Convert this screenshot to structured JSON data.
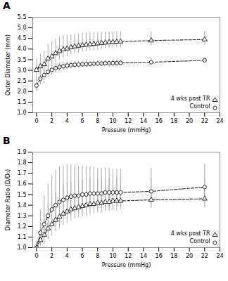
{
  "chart_data": [
    {
      "type": "line",
      "title": "A",
      "xlabel": "Pressure (mmHg)",
      "ylabel": "Outer Diameter (mm)",
      "xlim": [
        -0.5,
        24
      ],
      "xticks": [
        0,
        2,
        4,
        6,
        8,
        10,
        12,
        14,
        16,
        18,
        20,
        22,
        24
      ],
      "ylim": [
        1.0,
        5.5
      ],
      "yticks": [
        {
          "value": 1.0,
          "label": "1.0"
        },
        1.5,
        {
          "value": 2.0,
          "label": "2.0"
        },
        2.5,
        {
          "value": 3.0,
          "label": "3.0"
        },
        3.5,
        {
          "value": 4.0,
          "label": "4.0"
        },
        4.5,
        {
          "value": 5.0,
          "label": "5.0"
        },
        5.5
      ],
      "legend": "lower right",
      "x": [
        0,
        0.5,
        1,
        1.5,
        2,
        2.5,
        3,
        3.5,
        4,
        4.5,
        5,
        5.5,
        6,
        6.5,
        7,
        7.5,
        8,
        8.5,
        9,
        9.5,
        10,
        10.5,
        11,
        15,
        22
      ],
      "series": [
        {
          "name": "4 wks post TR",
          "color": "#2a2a2a",
          "marker": "triangle",
          "line_style": "dashed",
          "values": [
            3.02,
            3.18,
            3.28,
            3.55,
            3.65,
            3.8,
            3.9,
            3.98,
            4.02,
            4.08,
            4.12,
            4.15,
            4.18,
            4.2,
            4.22,
            4.24,
            4.26,
            4.28,
            4.3,
            4.32,
            4.33,
            4.34,
            4.35,
            4.4,
            4.45
          ],
          "yerr_upper": [
            0.5,
            0.58,
            0.62,
            0.68,
            0.7,
            0.7,
            0.68,
            0.65,
            0.62,
            0.6,
            0.58,
            0.57,
            0.56,
            0.55,
            0.54,
            0.53,
            0.52,
            0.51,
            0.5,
            0.49,
            0.48,
            0.47,
            0.46,
            0.42,
            0.38
          ],
          "yerr_lower": [
            0.5,
            0.38,
            0.38,
            0.4,
            0.42,
            0.42,
            0.42,
            0.4,
            0.38,
            0.36,
            0.35,
            0.34,
            0.33,
            0.32,
            0.31,
            0.3,
            0.3,
            0.29,
            0.28,
            0.28,
            0.27,
            0.27,
            0.26,
            0.25,
            0.25
          ]
        },
        {
          "name": "Control",
          "color": "#2a2a2a",
          "marker": "circle",
          "line_style": "dashed",
          "values": [
            2.28,
            2.6,
            2.78,
            2.93,
            3.02,
            3.1,
            3.15,
            3.19,
            3.22,
            3.24,
            3.26,
            3.27,
            3.28,
            3.29,
            3.3,
            3.31,
            3.32,
            3.32,
            3.33,
            3.33,
            3.34,
            3.34,
            3.35,
            3.38,
            3.47
          ],
          "yerr_upper": [
            0.28,
            0.3,
            0.28,
            0.27,
            0.26,
            0.24,
            0.22,
            0.21,
            0.2,
            0.19,
            0.18,
            0.18,
            0.17,
            0.17,
            0.16,
            0.16,
            0.16,
            0.15,
            0.15,
            0.15,
            0.15,
            0.14,
            0.14,
            0.13,
            0.13
          ],
          "yerr_lower": [
            0.28,
            0.28,
            0.26,
            0.25,
            0.24,
            0.22,
            0.21,
            0.2,
            0.19,
            0.18,
            0.17,
            0.17,
            0.16,
            0.16,
            0.15,
            0.15,
            0.15,
            0.14,
            0.14,
            0.14,
            0.14,
            0.13,
            0.13,
            0.12,
            0.12
          ]
        }
      ]
    },
    {
      "type": "line",
      "title": "B",
      "xlabel": "Pressure (mmHg)",
      "ylabel": "Diameter Ratio (D/D₀)",
      "xlim": [
        -0.5,
        24
      ],
      "xticks": [
        0,
        2,
        4,
        6,
        8,
        10,
        12,
        14,
        16,
        18,
        20,
        22,
        24
      ],
      "ylim": [
        1.0,
        1.9
      ],
      "yticks": [
        {
          "value": 1.0,
          "label": "1.0"
        },
        1.1,
        1.2,
        1.3,
        1.4,
        1.5,
        1.6,
        1.7,
        1.8,
        1.9
      ],
      "legend": "lower right",
      "x": [
        0,
        0.5,
        1,
        1.5,
        2,
        2.5,
        3,
        3.5,
        4,
        4.5,
        5,
        5.5,
        6,
        6.5,
        7,
        7.5,
        8,
        8.5,
        9,
        9.5,
        10,
        10.5,
        11,
        15,
        22
      ],
      "series": [
        {
          "name": "4 wks post TR",
          "color": "#2a2a2a",
          "marker": "triangle",
          "line_style": "dashed",
          "values": [
            1.0,
            1.07,
            1.12,
            1.18,
            1.22,
            1.26,
            1.29,
            1.32,
            1.34,
            1.36,
            1.37,
            1.38,
            1.39,
            1.4,
            1.41,
            1.41,
            1.42,
            1.42,
            1.43,
            1.43,
            1.44,
            1.44,
            1.44,
            1.45,
            1.46
          ],
          "yerr_upper": [
            0.05,
            0.16,
            0.2,
            0.23,
            0.25,
            0.26,
            0.27,
            0.27,
            0.27,
            0.26,
            0.26,
            0.25,
            0.25,
            0.24,
            0.24,
            0.23,
            0.23,
            0.22,
            0.22,
            0.22,
            0.21,
            0.21,
            0.21,
            0.2,
            0.19
          ],
          "yerr_lower": [
            0.0,
            0.06,
            0.09,
            0.1,
            0.11,
            0.11,
            0.11,
            0.11,
            0.11,
            0.11,
            0.1,
            0.1,
            0.1,
            0.1,
            0.1,
            0.09,
            0.09,
            0.09,
            0.09,
            0.09,
            0.09,
            0.09,
            0.08,
            0.08,
            0.08
          ]
        },
        {
          "name": "Control",
          "color": "#2a2a2a",
          "marker": "circle",
          "line_style": "dashed",
          "values": [
            1.0,
            1.14,
            1.22,
            1.3,
            1.36,
            1.4,
            1.43,
            1.45,
            1.47,
            1.48,
            1.49,
            1.49,
            1.5,
            1.5,
            1.51,
            1.51,
            1.51,
            1.51,
            1.52,
            1.52,
            1.52,
            1.52,
            1.52,
            1.53,
            1.57
          ],
          "yerr_upper": [
            0.05,
            0.22,
            0.27,
            0.3,
            0.32,
            0.33,
            0.33,
            0.32,
            0.31,
            0.3,
            0.29,
            0.28,
            0.27,
            0.26,
            0.25,
            0.25,
            0.24,
            0.24,
            0.23,
            0.23,
            0.22,
            0.22,
            0.22,
            0.22,
            0.22
          ],
          "yerr_lower": [
            0.0,
            0.1,
            0.13,
            0.15,
            0.16,
            0.17,
            0.17,
            0.17,
            0.17,
            0.17,
            0.16,
            0.16,
            0.15,
            0.15,
            0.15,
            0.15,
            0.14,
            0.14,
            0.14,
            0.14,
            0.13,
            0.13,
            0.13,
            0.13,
            0.12
          ]
        }
      ]
    }
  ]
}
